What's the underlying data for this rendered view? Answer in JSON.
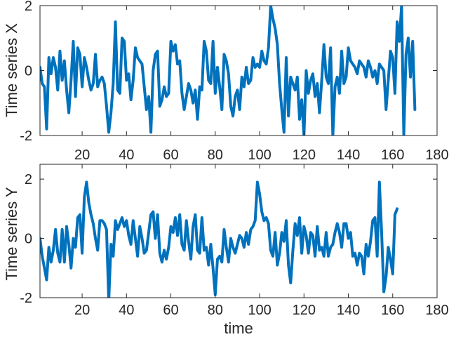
{
  "chart_data": [
    {
      "type": "line",
      "ylabel": "Time series X",
      "xlabel": "",
      "xlim": [
        1,
        180
      ],
      "ylim": [
        -2,
        2
      ],
      "xticks": [
        20,
        40,
        60,
        80,
        100,
        120,
        140,
        160,
        180
      ],
      "yticks": [
        -2,
        0,
        2
      ],
      "x_start": 1,
      "x_step": 1,
      "line_color": "#0072BD",
      "values": [
        0.1,
        -0.4,
        -0.5,
        -1.8,
        0.4,
        -0.1,
        0.4,
        0.1,
        -0.6,
        0.6,
        -0.3,
        0.3,
        -0.6,
        -1.3,
        -0.3,
        0.9,
        -0.8,
        0.7,
        0.5,
        -0.5,
        0.4,
        0.1,
        -0.3,
        -0.6,
        -0.4,
        0.5,
        -0.5,
        -0.3,
        -0.2,
        -0.4,
        -1.1,
        -1.9,
        -1.3,
        -0.4,
        1.5,
        -0.6,
        -0.7,
        1.0,
        0.9,
        -0.3,
        -0.1,
        -0.9,
        -0.3,
        0.7,
        0.4,
        0.3,
        0.2,
        -0.5,
        -1.2,
        -0.8,
        -1.9,
        0.0,
        0.5,
        0.6,
        -1.1,
        -0.9,
        -0.5,
        -0.8,
        -0.7,
        0.9,
        0.6,
        0.8,
        0.2,
        0.3,
        -0.7,
        -1.2,
        -0.8,
        -0.4,
        -0.6,
        -1.0,
        -0.6,
        -1.5,
        -0.5,
        -0.6,
        0.9,
        0.6,
        -0.3,
        -0.4,
        0.9,
        -0.7,
        0.1,
        -0.5,
        -1.2,
        0.5,
        0.3,
        -0.1,
        -1.1,
        -1.4,
        -0.8,
        -0.6,
        -1.2,
        -0.2,
        -0.5,
        0.1,
        -0.4,
        -0.3,
        0.4,
        0.1,
        0.2,
        0.1,
        0.6,
        0.3,
        0.2,
        0.7,
        2.0,
        1.6,
        1.3,
        0.8,
        -0.4,
        -1.2,
        -1.9,
        0.4,
        -1.4,
        -0.2,
        -0.4,
        -0.6,
        -0.2,
        -1.5,
        -0.9,
        -2.0,
        0.0,
        -0.7,
        -0.3,
        -0.1,
        -0.8,
        -0.4,
        -1.3,
        -0.3,
        0.8,
        -0.2,
        -0.4,
        0.7,
        -2.0,
        -0.5,
        -0.2,
        -0.7,
        0.6,
        -0.4,
        -0.2,
        0.7,
        0.3,
        0.2,
        0.1,
        -0.1,
        0.3,
        0.2,
        0.1,
        -0.2,
        0.3,
        0.1,
        -0.2,
        0.0,
        -0.4,
        0.2,
        0.1,
        0.0,
        -1.2,
        -0.3,
        0.6,
        0.4,
        -0.7,
        1.5,
        0.9,
        2.0,
        -2.0,
        0.5,
        1.0,
        -0.2,
        0.9,
        -1.2
      ]
    },
    {
      "type": "line",
      "ylabel": "Time series Y",
      "xlabel": "time",
      "xlim": [
        1,
        180
      ],
      "ylim": [
        -2,
        2.5
      ],
      "xticks": [
        20,
        40,
        60,
        80,
        100,
        120,
        140,
        160,
        180
      ],
      "yticks": [
        -2,
        0,
        2
      ],
      "x_start": 1,
      "x_step": 1,
      "line_color": "#0072BD",
      "values": [
        0.0,
        -0.6,
        -1.0,
        -1.4,
        -0.3,
        -0.8,
        -0.4,
        0.3,
        -0.5,
        -0.8,
        0.3,
        -0.8,
        0.4,
        -0.2,
        -1.0,
        0.0,
        -0.3,
        0.7,
        0.8,
        -0.5,
        1.4,
        1.9,
        1.2,
        0.8,
        0.5,
        0.0,
        -0.4,
        0.6,
        0.6,
        0.5,
        0.3,
        -2.1,
        -0.2,
        -0.6,
        0.6,
        0.3,
        0.5,
        0.7,
        0.4,
        0.6,
        0.1,
        -0.2,
        0.6,
        0.0,
        -0.6,
        0.4,
        0.0,
        -0.5,
        -0.4,
        0.2,
        0.8,
        0.9,
        0.0,
        0.8,
        -0.5,
        -0.8,
        -0.4,
        -0.7,
        -0.3,
        0.4,
        0.2,
        0.7,
        0.1,
        0.8,
        -0.2,
        -0.4,
        0.6,
        -0.1,
        -0.7,
        0.4,
        0.8,
        -0.4,
        -0.5,
        0.7,
        -0.4,
        -0.3,
        -0.9,
        -0.2,
        -1.0,
        -1.9,
        -0.7,
        -0.6,
        -0.8,
        0.3,
        -0.3,
        -0.8,
        0.0,
        -0.3,
        -0.5,
        -0.2,
        0.1,
        0.0,
        -0.3,
        0.2,
        -0.2,
        0.3,
        0.4,
        0.6,
        1.9,
        1.5,
        0.9,
        0.6,
        0.7,
        0.5,
        -0.4,
        -0.6,
        0.2,
        -0.9,
        -0.5,
        0.2,
        -0.1,
        0.6,
        -0.9,
        -1.5,
        -0.4,
        0.5,
        0.1,
        0.7,
        -0.5,
        0.4,
        0.1,
        -0.5,
        0.2,
        0.1,
        -0.6,
        0.4,
        -0.4,
        -0.3,
        -0.6,
        0.2,
        -0.6,
        -0.3,
        -0.2,
        0.2,
        0.5,
        0.2,
        -0.3,
        0.5,
        0.5,
        0.0,
        0.2,
        -0.6,
        -0.5,
        -0.9,
        -0.5,
        -0.6,
        -1.2,
        -0.2,
        -0.6,
        -0.1,
        0.6,
        0.7,
        -0.6,
        1.9,
        0.2,
        -1.8,
        -1.3,
        -0.3,
        -0.7,
        -1.2,
        0.8,
        1.0
      ]
    }
  ]
}
